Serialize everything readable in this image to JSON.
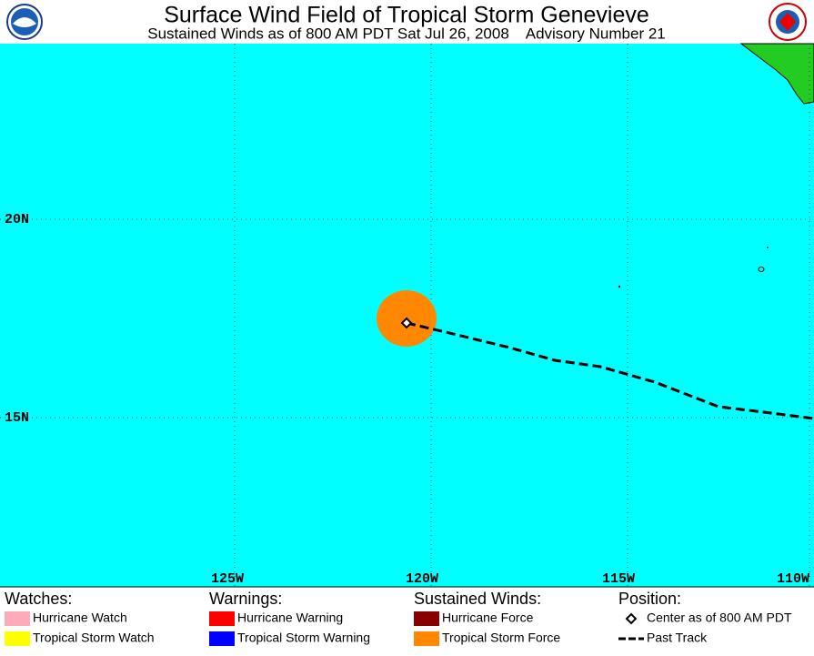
{
  "header": {
    "title": "Surface Wind Field of Tropical Storm Genevieve",
    "subtitle": "Sustained Winds as of 800 AM PDT Sat Jul 26, 2008    Advisory Number 21"
  },
  "map": {
    "lat_labels": [
      "20N",
      "15N"
    ],
    "lon_labels": [
      "125W",
      "120W",
      "115W",
      "110W"
    ]
  },
  "legend": [
    {
      "heading": "Watches:",
      "items": [
        {
          "label": "Hurricane Watch",
          "color": "#ffaabb"
        },
        {
          "label": "Tropical Storm Watch",
          "color": "#ffff00"
        }
      ]
    },
    {
      "heading": "Warnings:",
      "items": [
        {
          "label": "Hurricane Warning",
          "color": "#ff0000"
        },
        {
          "label": "Tropical Storm Warning",
          "color": "#0000ff"
        }
      ]
    },
    {
      "heading": "Sustained Winds:",
      "items": [
        {
          "label": "Hurricane Force",
          "color": "#880000"
        },
        {
          "label": "Tropical Storm Force",
          "color": "#ff8800"
        }
      ]
    },
    {
      "heading": "Position:",
      "items": [
        {
          "label": "Center as of 800 AM PDT"
        },
        {
          "label": "Past Track"
        }
      ]
    }
  ]
}
